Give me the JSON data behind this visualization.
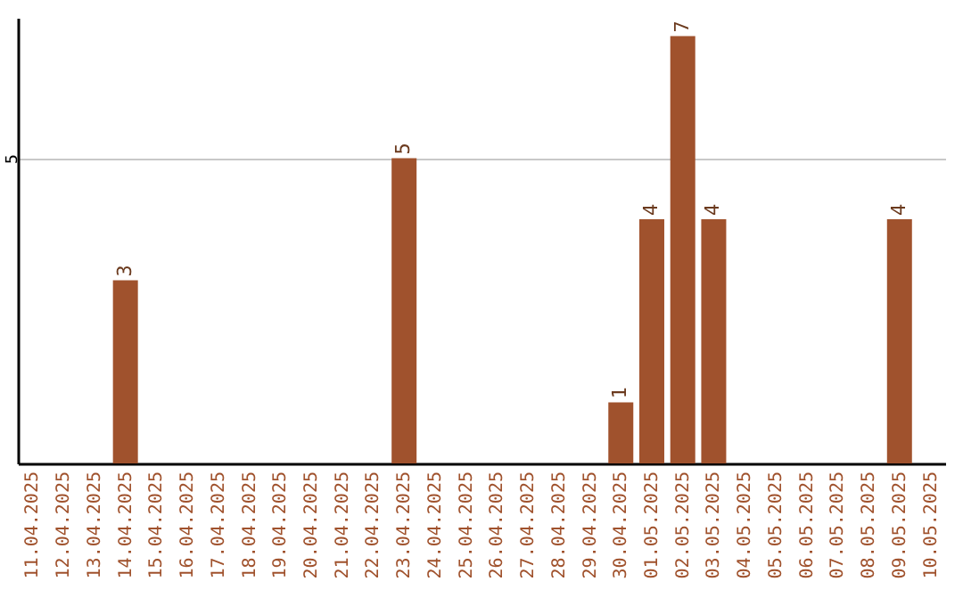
{
  "chart_data": {
    "type": "bar",
    "categories": [
      "11.04.2025",
      "12.04.2025",
      "13.04.2025",
      "14.04.2025",
      "15.04.2025",
      "16.04.2025",
      "17.04.2025",
      "18.04.2025",
      "19.04.2025",
      "20.04.2025",
      "21.04.2025",
      "22.04.2025",
      "23.04.2025",
      "24.04.2025",
      "25.04.2025",
      "26.04.2025",
      "27.04.2025",
      "28.04.2025",
      "29.04.2025",
      "30.04.2025",
      "01.05.2025",
      "02.05.2025",
      "03.05.2025",
      "04.05.2025",
      "05.05.2025",
      "06.05.2025",
      "07.05.2025",
      "08.05.2025",
      "09.05.2025",
      "10.05.2025"
    ],
    "values": [
      null,
      null,
      null,
      3,
      null,
      null,
      null,
      null,
      null,
      null,
      null,
      null,
      5,
      null,
      null,
      null,
      null,
      null,
      null,
      1,
      4,
      7,
      4,
      null,
      null,
      null,
      null,
      null,
      4,
      null
    ],
    "color": "#a0522d",
    "ylim": [
      0,
      7.3
    ],
    "yticks": [
      5
    ],
    "grid": "y",
    "data_labels": true
  }
}
